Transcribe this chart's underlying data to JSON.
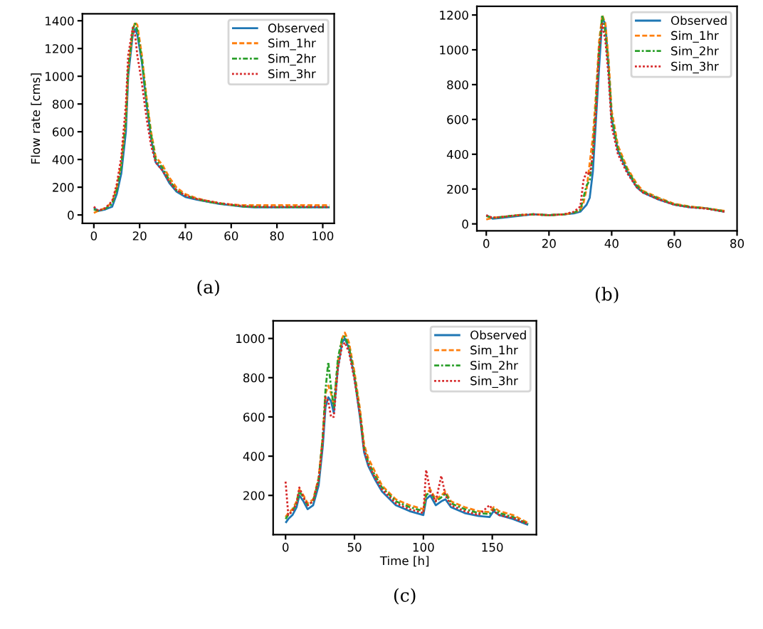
{
  "chart_data": [
    {
      "type": "line",
      "ylabel": "Flow rate [cms]",
      "annotations": [
        "(a)"
      ],
      "legend": "top right",
      "xlim": [
        -5,
        105
      ],
      "xticks": [
        0,
        20,
        40,
        60,
        80,
        100
      ],
      "ylim": [
        -60,
        1450
      ],
      "yticks": [
        0,
        200,
        400,
        600,
        800,
        1000,
        1200,
        1400
      ],
      "x": [
        0,
        2,
        5,
        8,
        10,
        12,
        14,
        15,
        17,
        18,
        19,
        21,
        23,
        25,
        27,
        30,
        33,
        36,
        40,
        45,
        50,
        55,
        60,
        65,
        70,
        80,
        90,
        100,
        103
      ],
      "series": [
        {
          "name": "Observed",
          "color": "#1f77b4",
          "line_style": "solid",
          "values": [
            50,
            30,
            40,
            60,
            150,
            300,
            600,
            1000,
            1300,
            1340,
            1300,
            1100,
            800,
            550,
            380,
            320,
            230,
            170,
            130,
            110,
            95,
            80,
            70,
            60,
            55,
            55,
            55,
            55,
            55
          ]
        },
        {
          "name": "Sim_1hr",
          "color": "#ff7f0e",
          "line_style": "dashed",
          "values": [
            15,
            30,
            50,
            90,
            200,
            380,
            700,
            1050,
            1330,
            1390,
            1370,
            1150,
            850,
            600,
            420,
            360,
            270,
            200,
            150,
            120,
            100,
            85,
            75,
            70,
            70,
            70,
            70,
            70,
            70
          ]
        },
        {
          "name": "Sim_2hr",
          "color": "#2ca02c",
          "line_style": "dashdot",
          "values": [
            40,
            30,
            45,
            80,
            180,
            350,
            680,
            1050,
            1340,
            1380,
            1330,
            1120,
            820,
            580,
            400,
            340,
            250,
            180,
            140,
            115,
            95,
            82,
            72,
            62,
            58,
            56,
            56,
            56,
            56
          ]
        },
        {
          "name": "Sim_3hr",
          "color": "#d62728",
          "line_style": "dotted",
          "values": [
            60,
            30,
            50,
            100,
            220,
            420,
            800,
            1150,
            1350,
            1300,
            1150,
            950,
            700,
            500,
            380,
            320,
            240,
            180,
            140,
            115,
            100,
            85,
            75,
            65,
            60,
            58,
            60,
            58,
            58
          ]
        }
      ]
    },
    {
      "type": "line",
      "annotations": [
        "(b)"
      ],
      "legend": "top right",
      "xlim": [
        -3,
        80
      ],
      "xticks": [
        0,
        20,
        40,
        60,
        80
      ],
      "ylim": [
        -40,
        1250
      ],
      "yticks": [
        0,
        200,
        400,
        600,
        800,
        1000,
        1200
      ],
      "x": [
        0,
        2,
        5,
        10,
        15,
        20,
        25,
        28,
        30,
        31,
        32,
        33,
        34,
        35,
        36,
        37,
        38,
        39,
        40,
        42,
        45,
        48,
        50,
        55,
        60,
        65,
        70,
        76
      ],
      "series": [
        {
          "name": "Observed",
          "color": "#1f77b4",
          "line_style": "solid",
          "values": [
            50,
            30,
            35,
            45,
            55,
            50,
            55,
            60,
            70,
            90,
            110,
            150,
            300,
            600,
            900,
            1180,
            1150,
            900,
            600,
            420,
            300,
            210,
            180,
            140,
            110,
            95,
            90,
            70
          ]
        },
        {
          "name": "Sim_1hr",
          "color": "#ff7f0e",
          "line_style": "dashed",
          "values": [
            25,
            35,
            40,
            50,
            55,
            50,
            55,
            65,
            80,
            120,
            200,
            350,
            500,
            750,
            1050,
            1200,
            1150,
            950,
            650,
            450,
            320,
            230,
            190,
            150,
            115,
            100,
            90,
            75
          ]
        },
        {
          "name": "Sim_2hr",
          "color": "#2ca02c",
          "line_style": "dashdot",
          "values": [
            45,
            35,
            40,
            50,
            55,
            50,
            55,
            65,
            80,
            150,
            220,
            250,
            400,
            700,
            1000,
            1200,
            1100,
            900,
            620,
            430,
            310,
            220,
            185,
            145,
            112,
            98,
            90,
            72
          ]
        },
        {
          "name": "Sim_3hr",
          "color": "#d62728",
          "line_style": "dotted",
          "values": [
            50,
            35,
            40,
            50,
            55,
            50,
            55,
            70,
            100,
            250,
            300,
            280,
            400,
            650,
            1000,
            1150,
            1050,
            850,
            560,
            400,
            290,
            210,
            180,
            140,
            110,
            95,
            88,
            70
          ]
        }
      ]
    },
    {
      "type": "line",
      "xlabel": "Time [h]",
      "annotations": [
        "(c)"
      ],
      "legend": "top right",
      "xlim": [
        -9,
        182
      ],
      "xticks": [
        0,
        50,
        100,
        150
      ],
      "ylim": [
        0,
        1090
      ],
      "yticks": [
        200,
        400,
        600,
        800,
        1000
      ],
      "x": [
        0,
        2,
        5,
        8,
        10,
        13,
        16,
        20,
        24,
        27,
        29,
        31,
        33,
        35,
        38,
        41,
        43,
        46,
        50,
        54,
        57,
        60,
        65,
        70,
        80,
        90,
        100,
        102,
        105,
        109,
        113,
        116,
        120,
        130,
        140,
        148,
        151,
        155,
        165,
        176
      ],
      "series": [
        {
          "name": "Observed",
          "color": "#1f77b4",
          "line_style": "solid",
          "values": [
            60,
            80,
            100,
            140,
            200,
            170,
            130,
            150,
            250,
            450,
            650,
            700,
            680,
            620,
            850,
            980,
            1000,
            950,
            800,
            600,
            420,
            350,
            280,
            220,
            150,
            120,
            100,
            180,
            200,
            150,
            170,
            180,
            140,
            110,
            95,
            90,
            120,
            100,
            80,
            50
          ]
        },
        {
          "name": "Sim_1hr",
          "color": "#ff7f0e",
          "line_style": "dashed",
          "values": [
            90,
            110,
            130,
            170,
            230,
            200,
            160,
            180,
            290,
            500,
            720,
            760,
            720,
            660,
            880,
            1000,
            1030,
            980,
            830,
            640,
            460,
            390,
            320,
            250,
            180,
            150,
            130,
            210,
            230,
            180,
            200,
            220,
            170,
            140,
            120,
            115,
            140,
            120,
            100,
            60
          ]
        },
        {
          "name": "Sim_2hr",
          "color": "#2ca02c",
          "line_style": "dashdot",
          "values": [
            80,
            100,
            120,
            160,
            220,
            190,
            150,
            170,
            280,
            500,
            740,
            880,
            750,
            650,
            900,
            1000,
            1010,
            960,
            810,
            620,
            440,
            370,
            300,
            240,
            170,
            140,
            120,
            200,
            220,
            170,
            190,
            210,
            160,
            130,
            110,
            105,
            130,
            110,
            90,
            55
          ]
        },
        {
          "name": "Sim_3hr",
          "color": "#d62728",
          "line_style": "dotted",
          "values": [
            270,
            100,
            120,
            160,
            240,
            190,
            150,
            170,
            280,
            480,
            700,
            680,
            600,
            600,
            850,
            960,
            980,
            930,
            790,
            610,
            430,
            360,
            290,
            230,
            160,
            130,
            110,
            330,
            220,
            170,
            300,
            200,
            150,
            120,
            100,
            150,
            120,
            100,
            85,
            55
          ]
        }
      ]
    }
  ]
}
